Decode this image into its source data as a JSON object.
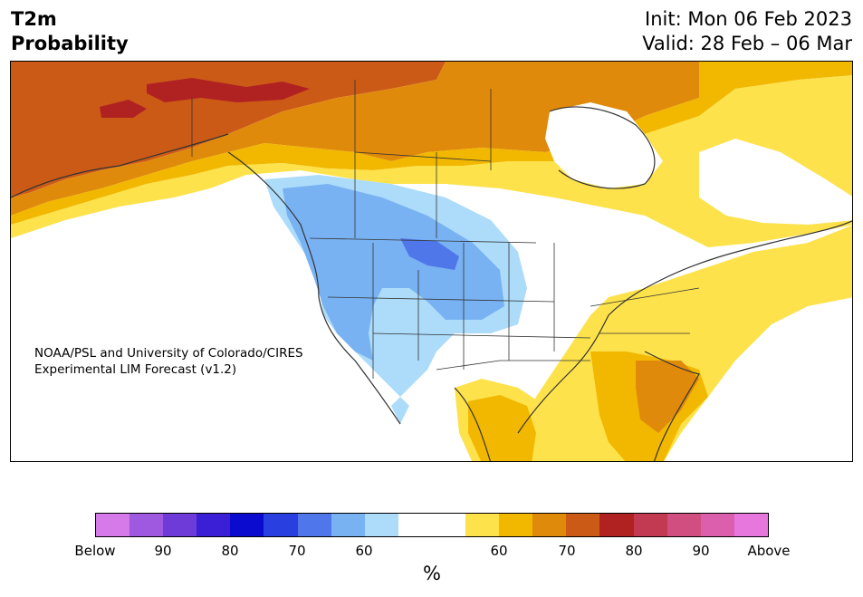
{
  "header": {
    "variable": "T2m",
    "product": "Probability",
    "init": "Init: Mon 06 Feb 2023",
    "valid": "Valid: 28 Feb – 06 Mar"
  },
  "credit": {
    "line1": "NOAA/PSL and University of Colorado/CIRES",
    "line2": "Experimental LIM Forecast (v1.2)"
  },
  "colorbar": {
    "unit": "%",
    "colors": [
      "#d57ae8",
      "#9f59e0",
      "#6e3bd9",
      "#3a1fd6",
      "#0b0bd0",
      "#2a3fdf",
      "#5077ea",
      "#79b2f3",
      "#addcfa",
      "#ffffff",
      "#ffffff",
      "#fde24b",
      "#f2b800",
      "#e08a0c",
      "#cc5a17",
      "#b02222",
      "#c23a52",
      "#d04e80",
      "#dc5fae",
      "#e877dd"
    ],
    "tick_labels": [
      "Below",
      "90",
      "80",
      "70",
      "60",
      "60",
      "70",
      "80",
      "90",
      "Above"
    ]
  },
  "legend_categories": {
    "below_normal_color": "#79b2f3",
    "above_normal_color": "#f2b800"
  }
}
